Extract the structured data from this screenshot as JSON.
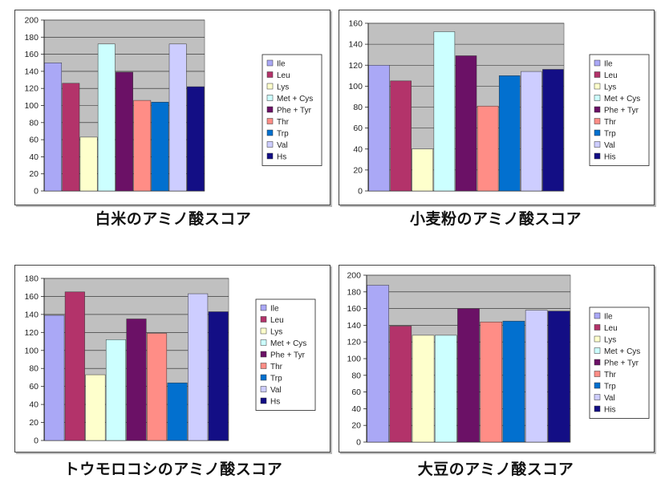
{
  "colors": {
    "Ile": "#aaa8f6",
    "Leu": "#b3336a",
    "Lys": "#feffcc",
    "Met + Cys": "#ccffff",
    "Phe + Tyr": "#6b1166",
    "Thr": "#ff8d86",
    "Trp": "#0270cf",
    "Val": "#cdcdff",
    "His": "#130e85",
    "plot_area": "#c0c0c0"
  },
  "chart_data": [
    {
      "type": "bar",
      "title": "白米のアミノ酸スコア",
      "categories": [
        "Ile",
        "Leu",
        "Lys",
        "Met + Cys",
        "Phe + Tyr",
        "Thr",
        "Trp",
        "Val",
        "Hs"
      ],
      "values": [
        150,
        126,
        63,
        172,
        139,
        106,
        104,
        172,
        122
      ],
      "ylim": [
        0,
        200
      ],
      "yticks": [
        0,
        20,
        40,
        60,
        80,
        100,
        120,
        140,
        160,
        180,
        200
      ],
      "legend": "right",
      "grid": true
    },
    {
      "type": "bar",
      "title": "小麦粉のアミノ酸スコア",
      "categories": [
        "Ile",
        "Leu",
        "Lys",
        "Met + Cys",
        "Phe + Tyr",
        "Thr",
        "Trp",
        "Val",
        "His"
      ],
      "values": [
        120,
        105,
        40,
        152,
        129,
        81,
        110,
        114,
        116
      ],
      "ylim": [
        0,
        160
      ],
      "yticks": [
        0,
        20,
        40,
        60,
        80,
        100,
        120,
        140,
        160
      ],
      "legend": "right",
      "grid": true
    },
    {
      "type": "bar",
      "title": "トウモロコシのアミノ酸スコア",
      "categories": [
        "Ile",
        "Leu",
        "Lys",
        "Met + Cys",
        "Phe + Tyr",
        "Thr",
        "Trp",
        "Val",
        "Hs"
      ],
      "values": [
        139,
        165,
        73,
        112,
        135,
        119,
        64,
        163,
        143
      ],
      "ylim": [
        0,
        180
      ],
      "yticks": [
        0,
        20,
        40,
        60,
        80,
        100,
        120,
        140,
        160,
        180
      ],
      "legend": "right",
      "grid": true
    },
    {
      "type": "bar",
      "title": "大豆のアミノ酸スコア",
      "categories": [
        "Ile",
        "Leu",
        "Lys",
        "Met + Cys",
        "Phe + Tyr",
        "Thr",
        "Trp",
        "Val",
        "His"
      ],
      "values": [
        188,
        139,
        128,
        128,
        160,
        144,
        145,
        158,
        157
      ],
      "ylim": [
        0,
        200
      ],
      "yticks": [
        0,
        20,
        40,
        60,
        80,
        100,
        120,
        140,
        160,
        180,
        200
      ],
      "legend": "right",
      "grid": true
    }
  ]
}
